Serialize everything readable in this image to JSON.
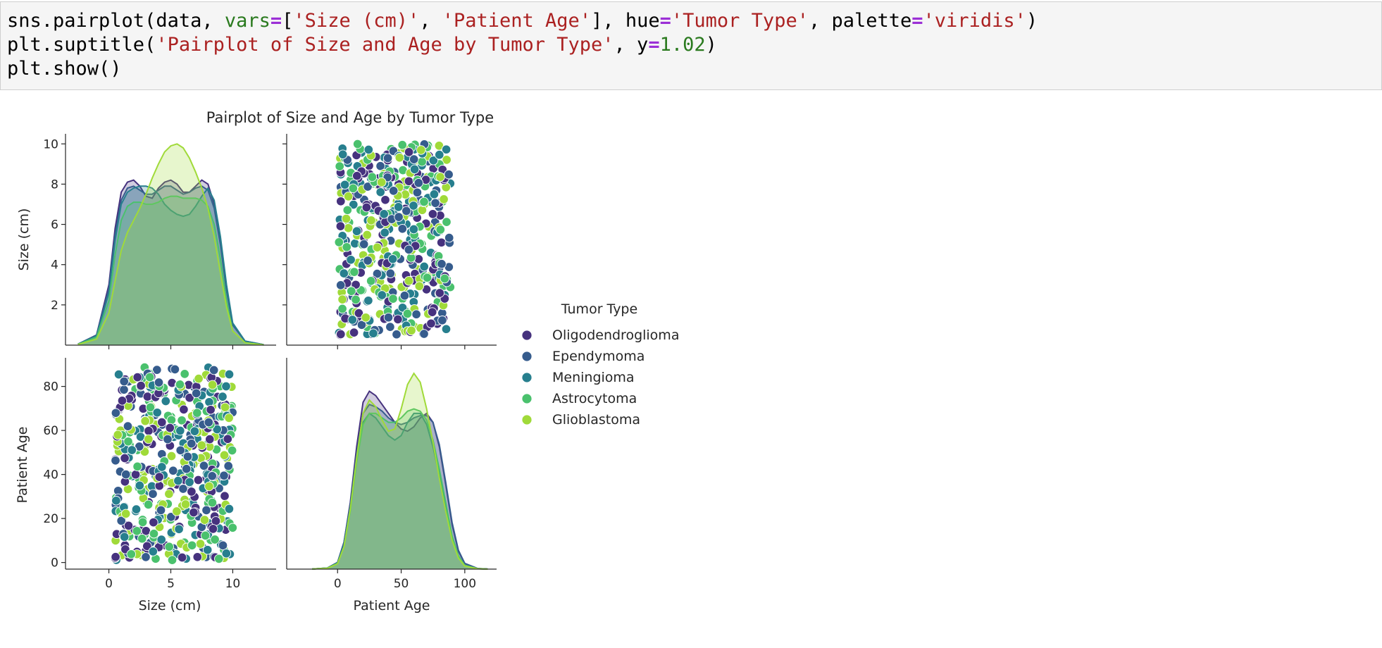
{
  "code_cell": {
    "line1": {
      "p1": "sns.pairplot(data, ",
      "kw1": "vars",
      "eq1": "=",
      "p2": "[",
      "s1": "'Size (cm)'",
      "p3": ", ",
      "s2": "'Patient Age'",
      "p4": "], hue",
      "eq2": "=",
      "s3": "'Tumor Type'",
      "p5": ", palette",
      "eq3": "=",
      "s4": "'viridis'",
      "p6": ")"
    },
    "line2": {
      "p1": "plt.suptitle(",
      "s1": "'Pairplot of Size and Age by Tumor Type'",
      "p2": ", y",
      "eq1": "=",
      "n1": "1.02",
      "p3": ")"
    },
    "line3": "plt.show()"
  },
  "colors": {
    "Oligodendroglioma": "#46327e",
    "Ependymoma": "#365c8d",
    "Meningioma": "#277f8e",
    "Astrocytoma": "#4ac16d",
    "Glioblastoma": "#a0da39"
  },
  "chart_data": {
    "type": "scatter",
    "subtype": "pairplot",
    "title": "Pairplot of Size and Age by Tumor Type",
    "vars": [
      "Size (cm)",
      "Patient Age"
    ],
    "hue": "Tumor Type",
    "palette": "viridis",
    "legend": {
      "title": "Tumor Type",
      "placement": "right",
      "entries": [
        "Oligodendroglioma",
        "Ependymoma",
        "Meningioma",
        "Astrocytoma",
        "Glioblastoma"
      ]
    },
    "axes": {
      "size": {
        "label": "Size (cm)",
        "range": [
          -3.5,
          13.5
        ],
        "ticks": [
          0,
          5,
          10
        ],
        "diag_yticks": [
          2,
          4,
          6,
          8,
          10
        ],
        "diag_ylim": [
          0,
          10.5
        ]
      },
      "age": {
        "label": "Patient Age",
        "range": [
          -40,
          125
        ],
        "ticks": [
          0,
          50,
          100
        ],
        "yticks": [
          0,
          20,
          40,
          60,
          80
        ],
        "ylim": [
          -3,
          93
        ]
      }
    },
    "scatter": {
      "size_range": [
        0.5,
        10
      ],
      "age_range": [
        1,
        89
      ],
      "approx_points": 500
    },
    "kde_size": {
      "x": [
        -2.5,
        -1,
        0,
        0.5,
        1,
        1.5,
        2,
        2.5,
        3,
        3.5,
        4,
        4.5,
        5,
        5.5,
        6,
        6.5,
        7,
        7.5,
        8,
        8.5,
        9,
        9.5,
        10,
        11,
        12.5
      ],
      "series": [
        {
          "name": "Oligodendroglioma",
          "values": [
            0.05,
            0.5,
            3.0,
            5.8,
            7.6,
            8.1,
            8.2,
            7.9,
            7.4,
            7.3,
            7.8,
            8.1,
            8.2,
            8.0,
            7.6,
            7.6,
            7.9,
            8.2,
            8.0,
            7.0,
            5.1,
            2.8,
            1.0,
            0.2,
            0.02
          ]
        },
        {
          "name": "Ependymoma",
          "values": [
            0.05,
            0.5,
            2.8,
            5.5,
            7.2,
            7.8,
            7.9,
            7.7,
            7.5,
            7.5,
            7.7,
            7.9,
            7.9,
            7.7,
            7.5,
            7.6,
            7.8,
            7.9,
            7.7,
            6.8,
            5.0,
            2.7,
            1.0,
            0.2,
            0.02
          ]
        },
        {
          "name": "Meningioma",
          "values": [
            0.05,
            0.45,
            2.6,
            5.2,
            7.0,
            7.6,
            7.8,
            7.9,
            7.9,
            7.8,
            7.5,
            7.0,
            6.7,
            6.5,
            6.4,
            6.5,
            6.9,
            7.4,
            7.8,
            7.2,
            5.4,
            3.0,
            1.1,
            0.2,
            0.02
          ]
        },
        {
          "name": "Astrocytoma",
          "values": [
            0.04,
            0.4,
            2.2,
            4.5,
            6.2,
            6.9,
            7.1,
            7.1,
            7.0,
            7.0,
            7.1,
            7.3,
            7.4,
            7.4,
            7.3,
            7.3,
            7.3,
            7.2,
            6.9,
            6.0,
            4.3,
            2.2,
            0.7,
            0.12,
            0.01
          ]
        },
        {
          "name": "Glioblastoma",
          "values": [
            0.03,
            0.3,
            1.6,
            3.2,
            4.7,
            5.6,
            6.2,
            6.8,
            7.5,
            8.3,
            9.0,
            9.6,
            9.9,
            10.0,
            9.8,
            9.3,
            8.6,
            7.8,
            6.8,
            5.4,
            3.6,
            1.9,
            0.7,
            0.12,
            0.01
          ]
        }
      ]
    },
    "kde_age": {
      "x": [
        -20,
        -8,
        0,
        5,
        10,
        15,
        20,
        25,
        30,
        35,
        40,
        45,
        50,
        55,
        60,
        65,
        70,
        75,
        80,
        85,
        90,
        95,
        100,
        110,
        118
      ],
      "series": [
        {
          "name": "Oligodendroglioma",
          "values": [
            0.02,
            0.5,
            3,
            12,
            30,
            55,
            75,
            80,
            78,
            74,
            70,
            66,
            63,
            62,
            64,
            68,
            70,
            66,
            55,
            38,
            20,
            8,
            2.5,
            0.3,
            0.02
          ]
        },
        {
          "name": "Ependymoma",
          "values": [
            0.02,
            0.5,
            3,
            12,
            29,
            52,
            70,
            74,
            73,
            71,
            68,
            66,
            65,
            66,
            68,
            69,
            69,
            66,
            56,
            39,
            21,
            8.5,
            2.6,
            0.3,
            0.02
          ]
        },
        {
          "name": "Meningioma",
          "values": [
            0.02,
            0.5,
            2.8,
            11,
            28,
            50,
            66,
            70,
            68,
            64,
            60,
            58,
            60,
            66,
            70,
            70,
            65,
            55,
            42,
            28,
            14,
            5.5,
            1.6,
            0.2,
            0.01
          ]
        },
        {
          "name": "Astrocytoma",
          "values": [
            0.02,
            0.45,
            2.6,
            10,
            26,
            48,
            65,
            70,
            70,
            68,
            66,
            66,
            68,
            71,
            72,
            71,
            67,
            58,
            45,
            30,
            15,
            6,
            1.7,
            0.2,
            0.01
          ]
        },
        {
          "name": "Glioblastoma",
          "values": [
            0.02,
            0.4,
            2.4,
            10,
            27,
            50,
            70,
            76,
            73,
            67,
            62,
            63,
            72,
            83,
            88,
            84,
            72,
            57,
            41,
            26,
            13,
            5,
            1.4,
            0.15,
            0.01
          ]
        }
      ]
    }
  }
}
